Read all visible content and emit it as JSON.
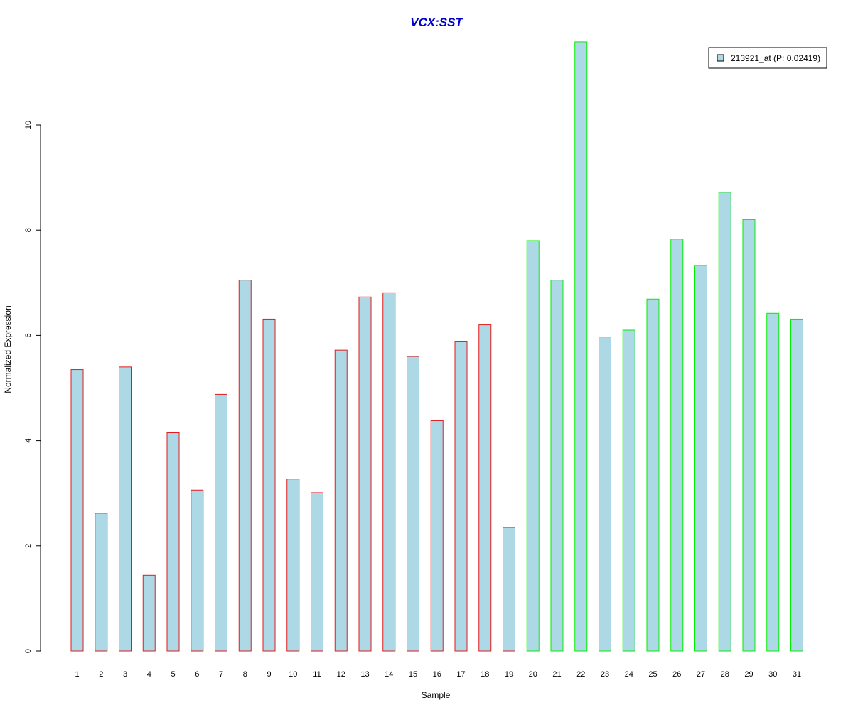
{
  "chart_data": {
    "type": "bar",
    "title": "VCX:SST",
    "xlabel": "Sample",
    "ylabel": "Normalized Expression",
    "ylim": [
      0,
      11.6
    ],
    "yticks": [
      0,
      2,
      4,
      6,
      8,
      10
    ],
    "grid": false,
    "legend_position": "top-right",
    "categories": [
      "1",
      "2",
      "3",
      "4",
      "5",
      "6",
      "7",
      "8",
      "9",
      "10",
      "11",
      "12",
      "13",
      "14",
      "15",
      "16",
      "17",
      "18",
      "19",
      "20",
      "21",
      "22",
      "23",
      "24",
      "25",
      "26",
      "27",
      "28",
      "29",
      "30",
      "31"
    ],
    "series": [
      {
        "name": "213921_at (P: 0.02419)",
        "values": [
          5.35,
          2.62,
          5.4,
          1.44,
          4.15,
          3.06,
          4.88,
          7.05,
          6.31,
          3.27,
          3.01,
          5.72,
          6.73,
          6.81,
          5.6,
          4.38,
          5.89,
          6.2,
          2.35,
          7.8,
          7.05,
          11.58,
          5.97,
          6.1,
          6.69,
          7.83,
          7.33,
          8.72,
          8.2,
          6.42,
          6.31
        ]
      }
    ],
    "groups": [
      {
        "samples": "1-19",
        "border_color": "#e31a1c"
      },
      {
        "samples": "20-31",
        "border_color": "#00ee00"
      }
    ],
    "colors": {
      "bar_fill": "#add8e6",
      "title": "#0000cd",
      "group1_border": "#e31a1c",
      "group2_border": "#00ee00"
    }
  }
}
